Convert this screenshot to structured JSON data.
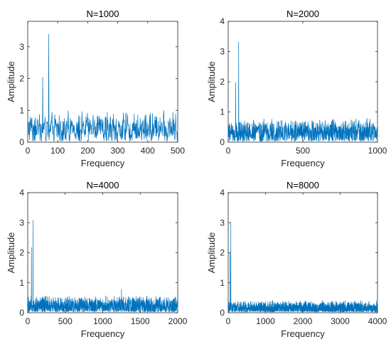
{
  "chart_data": [
    {
      "type": "line",
      "title": "N=1000",
      "xlabel": "Frequency",
      "ylabel": "Amplitude",
      "xlim": [
        0,
        500
      ],
      "ylim": [
        0,
        3.8
      ],
      "xticks": [
        0,
        100,
        200,
        300,
        400,
        500
      ],
      "yticks": [
        0,
        1,
        2,
        3
      ],
      "grid": false,
      "color": "#0072BD",
      "noise": {
        "baseline": 0.42,
        "spread": 0.6,
        "samples": 500
      },
      "peaks": [
        {
          "x": 50,
          "y": 2.05
        },
        {
          "x": 70,
          "y": 3.4
        }
      ]
    },
    {
      "type": "line",
      "title": "N=2000",
      "xlabel": "Frequency",
      "ylabel": "Amplitude",
      "xlim": [
        0,
        1000
      ],
      "ylim": [
        0,
        4
      ],
      "xticks": [
        0,
        500,
        1000
      ],
      "yticks": [
        0,
        1,
        2,
        3,
        4
      ],
      "grid": false,
      "color": "#0072BD",
      "noise": {
        "baseline": 0.32,
        "spread": 0.5,
        "samples": 1000
      },
      "peaks": [
        {
          "x": 50,
          "y": 1.98
        },
        {
          "x": 70,
          "y": 3.32
        }
      ]
    },
    {
      "type": "line",
      "title": "N=4000",
      "xlabel": "Frequency",
      "ylabel": "Amplitude",
      "xlim": [
        0,
        2000
      ],
      "ylim": [
        0,
        4
      ],
      "xticks": [
        0,
        500,
        1000,
        1500,
        2000
      ],
      "yticks": [
        0,
        1,
        2,
        3,
        4
      ],
      "grid": false,
      "color": "#0072BD",
      "noise": {
        "baseline": 0.22,
        "spread": 0.38,
        "samples": 1400
      },
      "peaks": [
        {
          "x": 50,
          "y": 2.18
        },
        {
          "x": 70,
          "y": 3.08
        },
        {
          "x": 1250,
          "y": 0.78
        }
      ]
    },
    {
      "type": "line",
      "title": "N=8000",
      "xlabel": "Frequency",
      "ylabel": "Amplitude",
      "xlim": [
        0,
        4000
      ],
      "ylim": [
        0,
        4
      ],
      "xticks": [
        0,
        1000,
        2000,
        3000,
        4000
      ],
      "yticks": [
        0,
        1,
        2,
        3,
        4
      ],
      "grid": false,
      "color": "#0072BD",
      "noise": {
        "baseline": 0.15,
        "spread": 0.27,
        "samples": 1800
      },
      "peaks": [
        {
          "x": 50,
          "y": 2.0
        },
        {
          "x": 70,
          "y": 3.02
        }
      ]
    }
  ]
}
